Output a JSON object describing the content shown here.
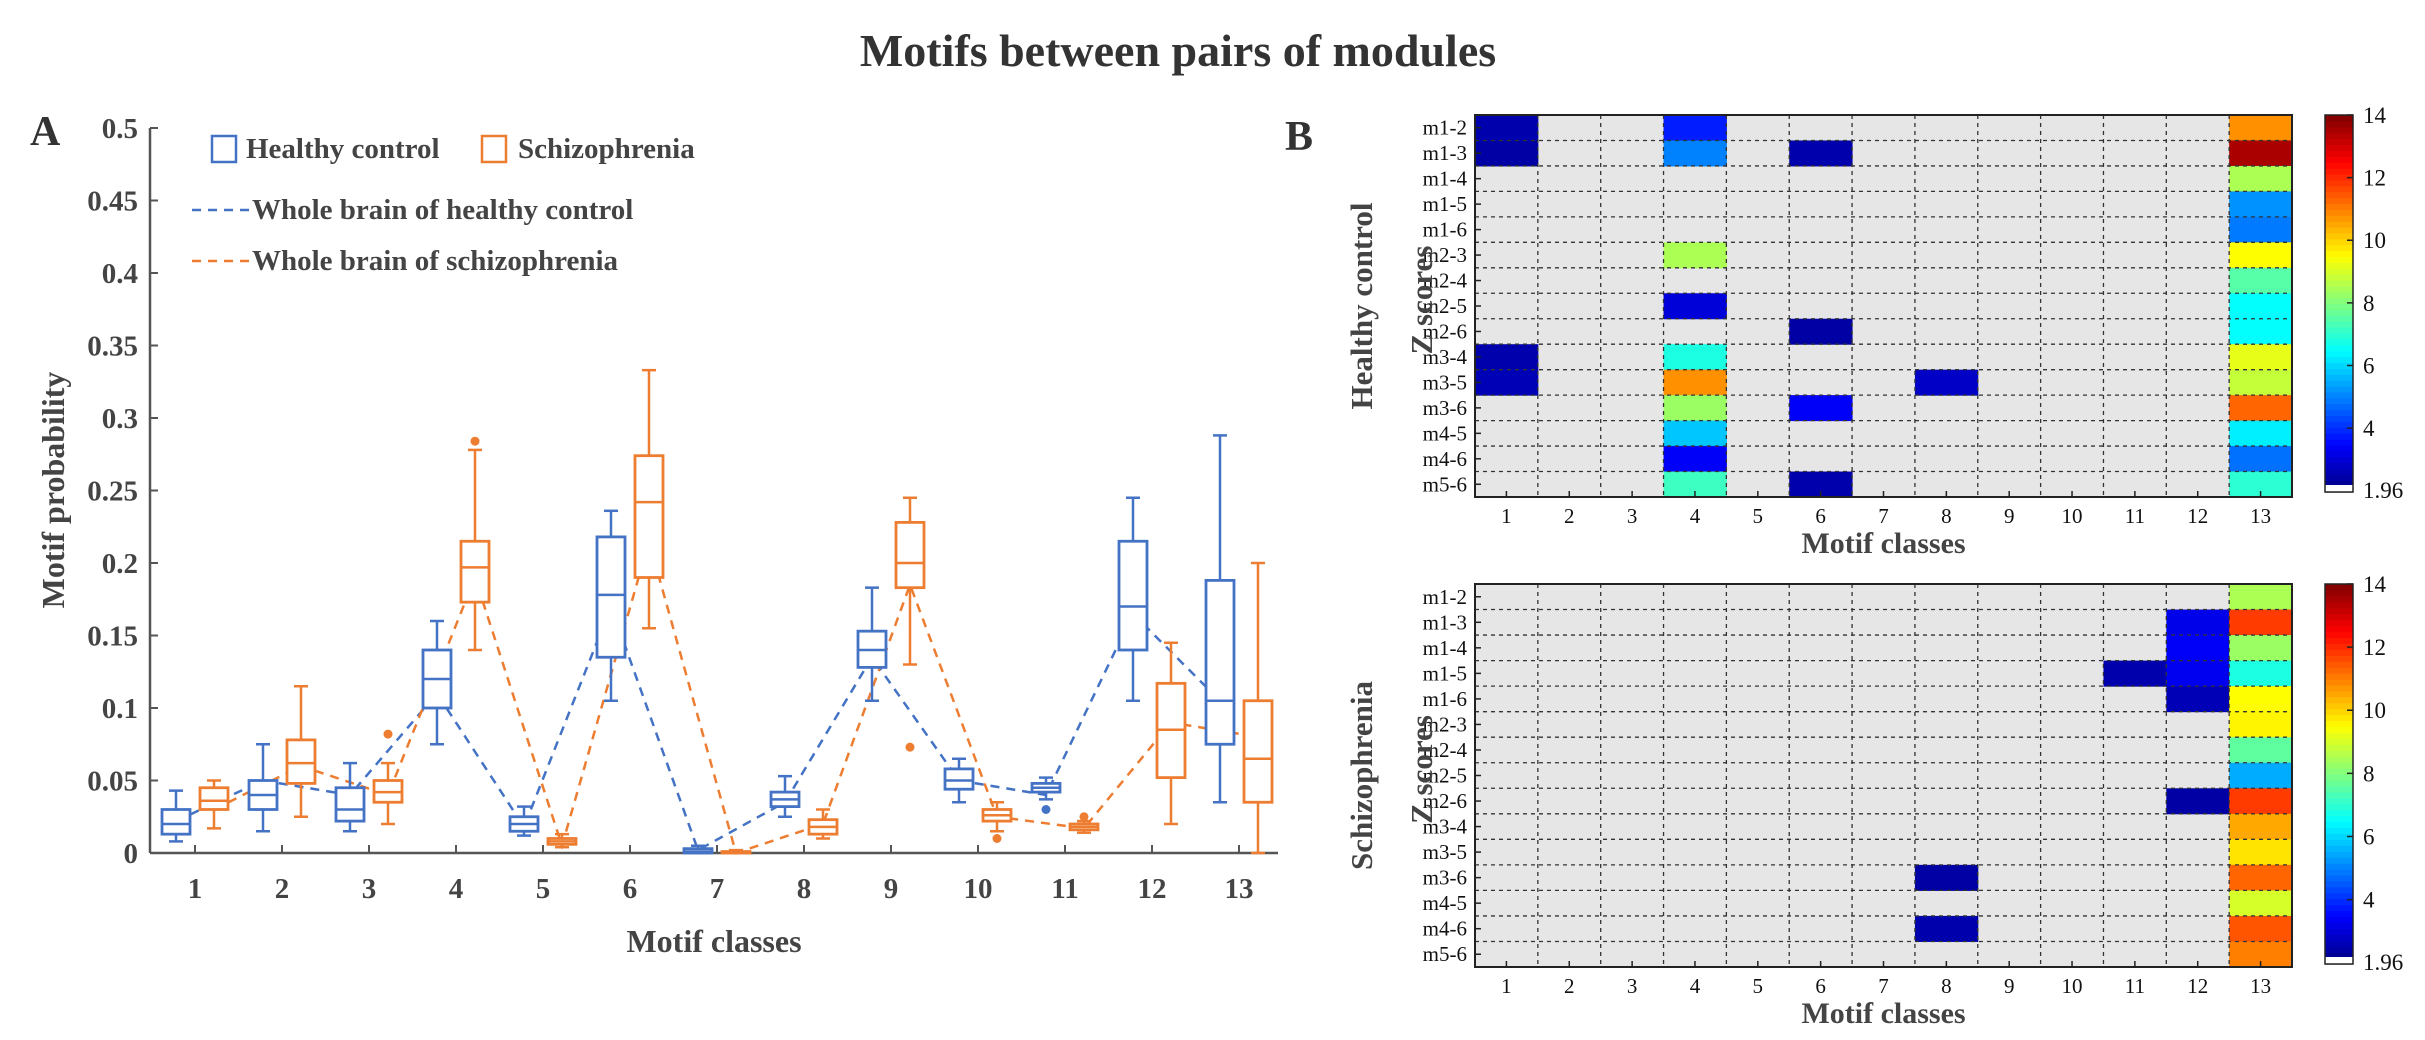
{
  "title": "Motifs between pairs of modules",
  "colors": {
    "healthy": "#4472C4",
    "schizo": "#ED7D31",
    "axis": "#555555",
    "label": "#444444",
    "heat_bg": "#E6E6E6",
    "heat_grid": "#333333"
  },
  "panel_a": {
    "letter": "A",
    "legend": {
      "healthy": "Healthy control",
      "schizo": "Schizophrenia",
      "whole_healthy": "Whole brain of healthy control",
      "whole_schizo": "Whole brain of schizophrenia"
    }
  },
  "panel_b": {
    "letter": "B"
  },
  "chart_data": [
    {
      "type": "box",
      "panel": "A",
      "xlabel": "Motif classes",
      "ylabel": "Motif probability",
      "ylim": [
        0,
        0.5
      ],
      "yticks": [
        0,
        0.05,
        0.1,
        0.15,
        0.2,
        0.25,
        0.3,
        0.35,
        0.4,
        0.45,
        0.5
      ],
      "ytick_labels": [
        "0",
        "0.05",
        "0.1",
        "0.15",
        "0.2",
        "0.25",
        "0.3",
        "0.35",
        "0.4",
        "0.45",
        "0.5"
      ],
      "categories": [
        "1",
        "2",
        "3",
        "4",
        "5",
        "6",
        "7",
        "8",
        "9",
        "10",
        "11",
        "12",
        "13"
      ],
      "series": [
        {
          "name": "Healthy control",
          "boxes": [
            {
              "min": 0.008,
              "q1": 0.013,
              "median": 0.02,
              "q3": 0.03,
              "max": 0.043,
              "outliers": []
            },
            {
              "min": 0.015,
              "q1": 0.03,
              "median": 0.04,
              "q3": 0.05,
              "max": 0.075,
              "outliers": []
            },
            {
              "min": 0.015,
              "q1": 0.022,
              "median": 0.03,
              "q3": 0.045,
              "max": 0.062,
              "outliers": []
            },
            {
              "min": 0.075,
              "q1": 0.1,
              "median": 0.12,
              "q3": 0.14,
              "max": 0.16,
              "outliers": []
            },
            {
              "min": 0.012,
              "q1": 0.015,
              "median": 0.02,
              "q3": 0.025,
              "max": 0.032,
              "outliers": []
            },
            {
              "min": 0.105,
              "q1": 0.135,
              "median": 0.178,
              "q3": 0.218,
              "max": 0.236,
              "outliers": []
            },
            {
              "min": 0.0,
              "q1": 0.0,
              "median": 0.001,
              "q3": 0.003,
              "max": 0.005,
              "outliers": []
            },
            {
              "min": 0.025,
              "q1": 0.032,
              "median": 0.037,
              "q3": 0.042,
              "max": 0.053,
              "outliers": []
            },
            {
              "min": 0.105,
              "q1": 0.128,
              "median": 0.14,
              "q3": 0.153,
              "max": 0.183,
              "outliers": []
            },
            {
              "min": 0.035,
              "q1": 0.044,
              "median": 0.05,
              "q3": 0.058,
              "max": 0.065,
              "outliers": []
            },
            {
              "min": 0.037,
              "q1": 0.042,
              "median": 0.045,
              "q3": 0.048,
              "max": 0.052,
              "outliers": [
                0.03
              ]
            },
            {
              "min": 0.105,
              "q1": 0.14,
              "median": 0.17,
              "q3": 0.215,
              "max": 0.245,
              "outliers": []
            },
            {
              "min": 0.035,
              "q1": 0.075,
              "median": 0.105,
              "q3": 0.188,
              "max": 0.288,
              "outliers": []
            }
          ],
          "whole_brain": [
            0.022,
            0.05,
            0.04,
            0.11,
            0.018,
            0.17,
            0.002,
            0.035,
            0.135,
            0.05,
            0.04,
            0.165,
            0.105
          ]
        },
        {
          "name": "Schizophrenia",
          "boxes": [
            {
              "min": 0.017,
              "q1": 0.03,
              "median": 0.036,
              "q3": 0.045,
              "max": 0.05,
              "outliers": []
            },
            {
              "min": 0.025,
              "q1": 0.048,
              "median": 0.062,
              "q3": 0.078,
              "max": 0.115,
              "outliers": []
            },
            {
              "min": 0.02,
              "q1": 0.035,
              "median": 0.042,
              "q3": 0.05,
              "max": 0.062,
              "outliers": [
                0.082
              ]
            },
            {
              "min": 0.14,
              "q1": 0.173,
              "median": 0.197,
              "q3": 0.215,
              "max": 0.278,
              "outliers": [
                0.284
              ]
            },
            {
              "min": 0.004,
              "q1": 0.006,
              "median": 0.008,
              "q3": 0.01,
              "max": 0.013,
              "outliers": []
            },
            {
              "min": 0.155,
              "q1": 0.19,
              "median": 0.242,
              "q3": 0.274,
              "max": 0.333,
              "outliers": []
            },
            {
              "min": 0.0,
              "q1": 0.0,
              "median": 0.0,
              "q3": 0.001,
              "max": 0.002,
              "outliers": []
            },
            {
              "min": 0.01,
              "q1": 0.013,
              "median": 0.018,
              "q3": 0.023,
              "max": 0.03,
              "outliers": []
            },
            {
              "min": 0.13,
              "q1": 0.183,
              "median": 0.2,
              "q3": 0.228,
              "max": 0.245,
              "outliers": [
                0.073
              ]
            },
            {
              "min": 0.015,
              "q1": 0.022,
              "median": 0.026,
              "q3": 0.03,
              "max": 0.035,
              "outliers": [
                0.01
              ]
            },
            {
              "min": 0.014,
              "q1": 0.016,
              "median": 0.018,
              "q3": 0.02,
              "max": 0.022,
              "outliers": [
                0.025
              ]
            },
            {
              "min": 0.02,
              "q1": 0.052,
              "median": 0.085,
              "q3": 0.117,
              "max": 0.145,
              "outliers": []
            },
            {
              "min": 0.0,
              "q1": 0.035,
              "median": 0.065,
              "q3": 0.105,
              "max": 0.2,
              "outliers": []
            }
          ],
          "whole_brain": [
            0.03,
            0.06,
            0.04,
            0.19,
            0.005,
            0.215,
            0.0,
            0.02,
            0.185,
            0.025,
            0.017,
            0.09,
            0.08
          ]
        }
      ]
    },
    {
      "type": "heatmap",
      "panel": "B-top",
      "group_label": "Healthy control",
      "ylabel": "Z scores",
      "xlabel": "Motif classes",
      "x": [
        "1",
        "2",
        "3",
        "4",
        "5",
        "6",
        "7",
        "8",
        "9",
        "10",
        "11",
        "12",
        "13"
      ],
      "y": [
        "m1-2",
        "m1-3",
        "m1-4",
        "m1-5",
        "m1-6",
        "m2-3",
        "m2-4",
        "m2-5",
        "m2-6",
        "m3-4",
        "m3-5",
        "m3-6",
        "m4-5",
        "m4-6",
        "m5-6"
      ],
      "colorbar": {
        "min": 1.96,
        "max": 14,
        "ticks": [
          4,
          6,
          8,
          10,
          12,
          14
        ],
        "tick_labels": [
          "4",
          "6",
          "8",
          "10",
          "12",
          "14"
        ],
        "min_label": "1.96"
      },
      "values": [
        [
          2.5,
          null,
          null,
          3.8,
          null,
          null,
          null,
          null,
          null,
          null,
          null,
          null,
          10.8
        ],
        [
          2.4,
          null,
          null,
          5.0,
          null,
          2.5,
          null,
          null,
          null,
          null,
          null,
          null,
          13.5
        ],
        [
          null,
          null,
          null,
          null,
          null,
          null,
          null,
          null,
          null,
          null,
          null,
          null,
          8.5
        ],
        [
          null,
          null,
          null,
          null,
          null,
          null,
          null,
          null,
          null,
          null,
          null,
          null,
          5.2
        ],
        [
          null,
          null,
          null,
          null,
          null,
          null,
          null,
          null,
          null,
          null,
          null,
          null,
          4.9
        ],
        [
          null,
          null,
          null,
          8.5,
          null,
          null,
          null,
          null,
          null,
          null,
          null,
          null,
          9.5
        ],
        [
          null,
          null,
          null,
          null,
          null,
          null,
          null,
          null,
          null,
          null,
          null,
          null,
          7.5
        ],
        [
          null,
          null,
          null,
          3.0,
          null,
          null,
          null,
          null,
          null,
          null,
          null,
          null,
          6.5
        ],
        [
          null,
          null,
          null,
          null,
          null,
          2.4,
          null,
          null,
          null,
          null,
          null,
          null,
          6.5
        ],
        [
          2.5,
          null,
          null,
          6.8,
          null,
          null,
          null,
          null,
          null,
          null,
          null,
          null,
          9.2
        ],
        [
          2.6,
          null,
          null,
          10.8,
          null,
          null,
          null,
          2.8,
          null,
          null,
          null,
          null,
          8.8
        ],
        [
          null,
          null,
          null,
          8.3,
          null,
          3.4,
          null,
          null,
          null,
          null,
          null,
          null,
          11.3
        ],
        [
          null,
          null,
          null,
          5.8,
          null,
          null,
          null,
          null,
          null,
          null,
          null,
          null,
          6.3
        ],
        [
          null,
          null,
          null,
          3.4,
          null,
          null,
          null,
          null,
          null,
          null,
          null,
          null,
          4.8
        ],
        [
          null,
          null,
          null,
          7.2,
          null,
          2.5,
          null,
          null,
          null,
          null,
          null,
          null,
          7.0
        ]
      ]
    },
    {
      "type": "heatmap",
      "panel": "B-bottom",
      "group_label": "Schizophrenia",
      "ylabel": "Z scores",
      "xlabel": "Motif classes",
      "x": [
        "1",
        "2",
        "3",
        "4",
        "5",
        "6",
        "7",
        "8",
        "9",
        "10",
        "11",
        "12",
        "13"
      ],
      "y": [
        "m1-2",
        "m1-3",
        "m1-4",
        "m1-5",
        "m1-6",
        "m2-3",
        "m2-4",
        "m2-5",
        "m2-6",
        "m3-4",
        "m3-5",
        "m3-6",
        "m4-5",
        "m4-6",
        "m5-6"
      ],
      "colorbar": {
        "min": 1.96,
        "max": 14,
        "ticks": [
          4,
          6,
          8,
          10,
          12,
          14
        ],
        "tick_labels": [
          "4",
          "6",
          "8",
          "10",
          "12",
          "14"
        ],
        "min_label": "1.96"
      },
      "values": [
        [
          null,
          null,
          null,
          null,
          null,
          null,
          null,
          null,
          null,
          null,
          null,
          null,
          8.5
        ],
        [
          null,
          null,
          null,
          null,
          null,
          null,
          null,
          null,
          null,
          null,
          null,
          3.2,
          11.8
        ],
        [
          null,
          null,
          null,
          null,
          null,
          null,
          null,
          null,
          null,
          null,
          null,
          3.4,
          8.3
        ],
        [
          null,
          null,
          null,
          null,
          null,
          null,
          null,
          null,
          null,
          null,
          2.5,
          3.3,
          6.8
        ],
        [
          null,
          null,
          null,
          null,
          null,
          null,
          null,
          null,
          null,
          null,
          null,
          2.6,
          9.5
        ],
        [
          null,
          null,
          null,
          null,
          null,
          null,
          null,
          null,
          null,
          null,
          null,
          null,
          9.6
        ],
        [
          null,
          null,
          null,
          null,
          null,
          null,
          null,
          null,
          null,
          null,
          null,
          null,
          7.6
        ],
        [
          null,
          null,
          null,
          null,
          null,
          null,
          null,
          null,
          null,
          null,
          null,
          null,
          5.5
        ],
        [
          null,
          null,
          null,
          null,
          null,
          null,
          null,
          null,
          null,
          null,
          null,
          2.4,
          11.8
        ],
        [
          null,
          null,
          null,
          null,
          null,
          null,
          null,
          null,
          null,
          null,
          null,
          null,
          10.5
        ],
        [
          null,
          null,
          null,
          null,
          null,
          null,
          null,
          null,
          null,
          null,
          null,
          null,
          9.8
        ],
        [
          null,
          null,
          null,
          null,
          null,
          null,
          null,
          2.4,
          null,
          null,
          null,
          null,
          11.3
        ],
        [
          null,
          null,
          null,
          null,
          null,
          null,
          null,
          null,
          null,
          null,
          null,
          null,
          9.0
        ],
        [
          null,
          null,
          null,
          null,
          null,
          null,
          null,
          2.5,
          null,
          null,
          null,
          null,
          11.5
        ],
        [
          null,
          null,
          null,
          null,
          null,
          null,
          null,
          null,
          null,
          null,
          null,
          null,
          11.0
        ]
      ]
    }
  ]
}
